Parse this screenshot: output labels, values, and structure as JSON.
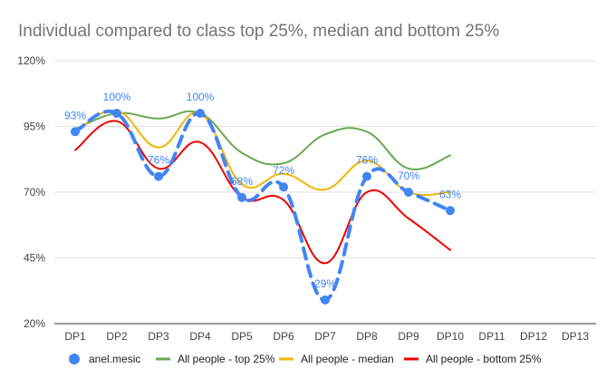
{
  "chart_data": {
    "type": "line",
    "title": "Individual compared to class top 25%, median and bottom 25%",
    "xlabel": "",
    "ylabel": "",
    "categories": [
      "DP1",
      "DP2",
      "DP3",
      "DP4",
      "DP5",
      "DP6",
      "DP7",
      "DP8",
      "DP9",
      "DP10",
      "DP11",
      "DP12",
      "DP13"
    ],
    "yticks": [
      "20%",
      "45%",
      "70%",
      "95%",
      "120%"
    ],
    "ylim": [
      20,
      120
    ],
    "grid": true,
    "legend_position": "bottom",
    "series": [
      {
        "name": "anel.mesic",
        "color": "#4285f4",
        "style": "dashed-markers",
        "values": [
          93,
          100,
          76,
          100,
          68,
          72,
          29,
          76,
          70,
          63,
          null,
          null,
          null
        ],
        "labels": [
          "93%",
          "100%",
          "76%",
          "100%",
          "68%",
          "72%",
          "29%",
          "76%",
          "70%",
          "63%",
          null,
          null,
          null
        ]
      },
      {
        "name": "All people - top 25%",
        "color": "#6aa84f",
        "style": "smooth",
        "values": [
          94,
          100,
          98,
          100,
          85,
          81,
          92,
          93,
          79,
          84,
          null,
          null,
          null
        ]
      },
      {
        "name": "All people - median",
        "color": "#f1b400",
        "style": "smooth",
        "values": [
          93,
          101,
          87,
          100,
          73,
          77,
          71,
          82,
          70,
          70,
          null,
          null,
          null
        ]
      },
      {
        "name": "All people - bottom 25%",
        "color": "#ee0000",
        "style": "smooth",
        "values": [
          86,
          97,
          79,
          89,
          68,
          67,
          43,
          70,
          60,
          48,
          null,
          null,
          null
        ]
      }
    ]
  }
}
